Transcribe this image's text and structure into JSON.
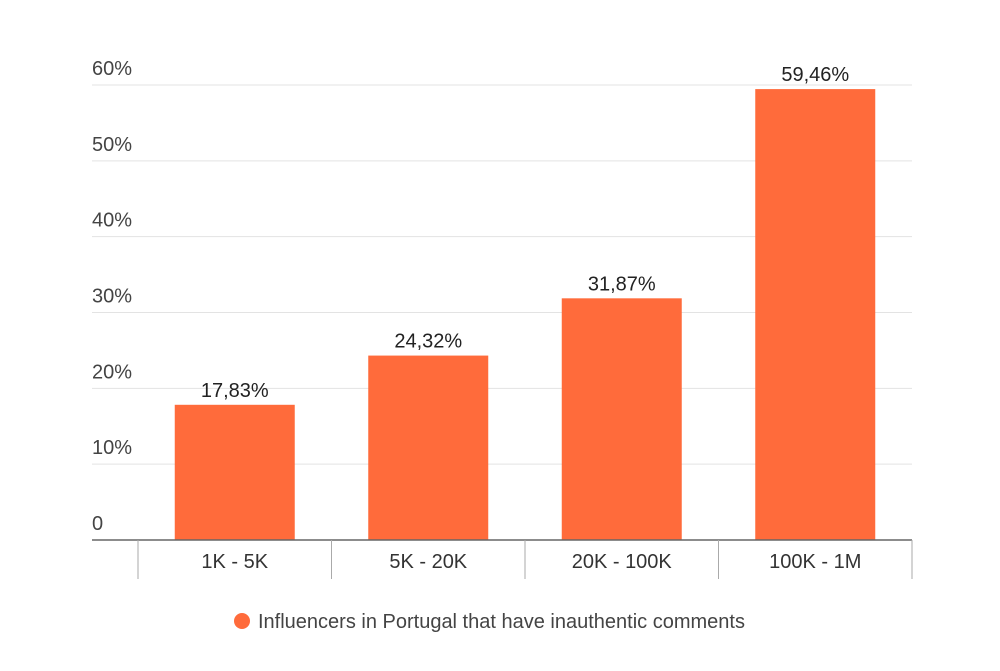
{
  "chart_data": {
    "type": "bar",
    "categories": [
      "1K - 5K",
      "5K - 20K",
      "20K - 100K",
      "100K - 1M"
    ],
    "series": [
      {
        "name": "Influencers in Portugal that have inauthentic comments",
        "values": [
          17.83,
          24.32,
          31.87,
          59.46
        ],
        "labels": [
          "17,83%",
          "24,32%",
          "31,87%",
          "59,46%"
        ]
      }
    ],
    "yticks": [
      0,
      10,
      20,
      30,
      40,
      50,
      60
    ],
    "ytick_labels": [
      "0",
      "10%",
      "20%",
      "30%",
      "40%",
      "50%",
      "60%"
    ],
    "ylim": [
      0,
      60
    ],
    "grid": true,
    "legend": "bottom",
    "colors": {
      "bar": "#ff6b3b",
      "grid": "#e3e3e3",
      "axis": "#666666"
    }
  }
}
